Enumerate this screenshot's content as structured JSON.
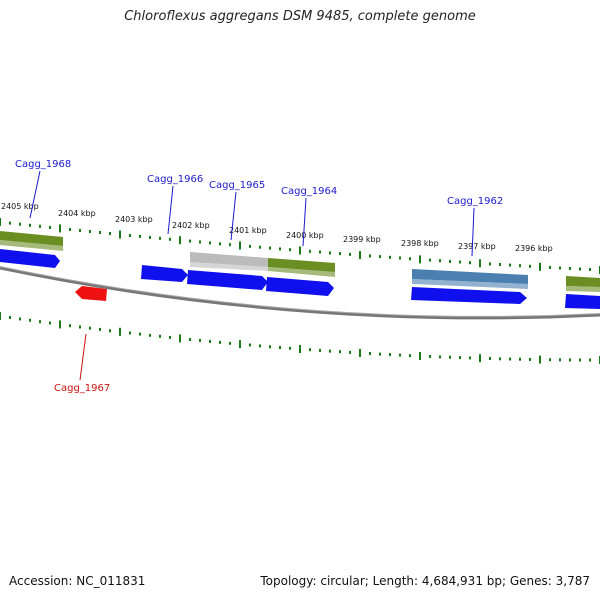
{
  "title": "Chloroflexus aggregans DSM 9485, complete genome",
  "footer": {
    "accession": "Accession: NC_011831",
    "stats": "Topology: circular; Length: 4,684,931 bp; Genes: 3,787"
  },
  "colors": {
    "backbone": "#777777",
    "ticks": "#1a7a1a",
    "forward_cds": "#1010ee",
    "reverse_cds": "#ee1111",
    "olive_feature": "#6b8e23",
    "steel_feature": "#4a7fb0",
    "gray_feature": "#bbbbbb",
    "label_forward": "#1a1acc",
    "label_reverse": "#cc1111"
  },
  "scale": {
    "unit": "kbp",
    "ticks": [
      "2405 kbp",
      "2404 kbp",
      "2403 kbp",
      "2402 kbp",
      "2401 kbp",
      "2400 kbp",
      "2399 kbp",
      "2398 kbp",
      "2397 kbp",
      "2396 kbp"
    ]
  },
  "gene_labels": [
    {
      "name": "Cagg_1968",
      "strand": "forward"
    },
    {
      "name": "Cagg_1966",
      "strand": "forward"
    },
    {
      "name": "Cagg_1965",
      "strand": "forward"
    },
    {
      "name": "Cagg_1964",
      "strand": "forward"
    },
    {
      "name": "Cagg_1962",
      "strand": "forward"
    },
    {
      "name": "Cagg_1967",
      "strand": "reverse"
    }
  ]
}
